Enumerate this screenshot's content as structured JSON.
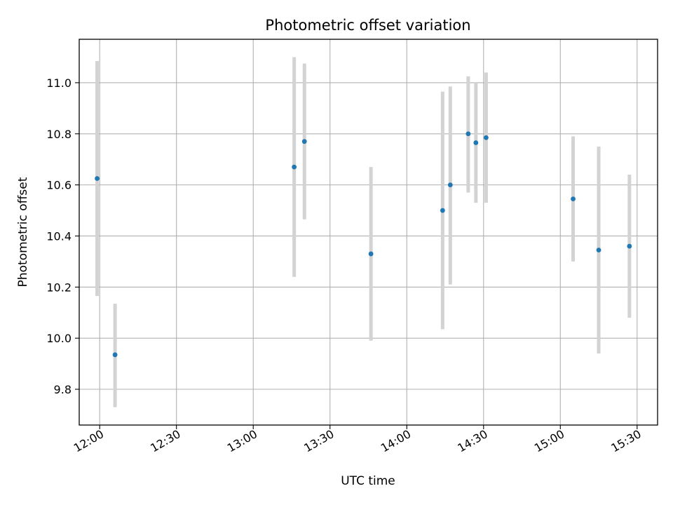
{
  "chart_data": {
    "type": "scatter",
    "title": "Photometric offset variation",
    "xlabel": "UTC time",
    "ylabel": "Photometric offset",
    "x_unit": "UTC clock time (HH:MM)",
    "xlim": [
      "11:52",
      "15:38"
    ],
    "ylim": [
      9.66,
      11.17
    ],
    "grid": true,
    "x_ticks": [
      "12:00",
      "12:30",
      "13:00",
      "13:30",
      "14:00",
      "14:30",
      "15:00",
      "15:30"
    ],
    "y_ticks": [
      9.8,
      10.0,
      10.2,
      10.4,
      10.6,
      10.8,
      11.0
    ],
    "y_tick_labels": [
      "9.8",
      "10.0",
      "10.2",
      "10.4",
      "10.6",
      "10.8",
      "11.0"
    ],
    "marker_color": "#1f77b4",
    "errorbar_color": "#d3d3d3",
    "points": [
      {
        "t": "11:59",
        "y": 10.625,
        "lo": 10.165,
        "hi": 11.085
      },
      {
        "t": "12:06",
        "y": 9.935,
        "lo": 9.73,
        "hi": 10.135
      },
      {
        "t": "13:16",
        "y": 10.67,
        "lo": 10.24,
        "hi": 11.1
      },
      {
        "t": "13:20",
        "y": 10.77,
        "lo": 10.465,
        "hi": 11.075
      },
      {
        "t": "13:46",
        "y": 10.33,
        "lo": 9.99,
        "hi": 10.67
      },
      {
        "t": "14:14",
        "y": 10.5,
        "lo": 10.035,
        "hi": 10.965
      },
      {
        "t": "14:17",
        "y": 10.6,
        "lo": 10.21,
        "hi": 10.985
      },
      {
        "t": "14:24",
        "y": 10.8,
        "lo": 10.57,
        "hi": 11.025
      },
      {
        "t": "14:27",
        "y": 10.765,
        "lo": 10.53,
        "hi": 11.0
      },
      {
        "t": "14:31",
        "y": 10.785,
        "lo": 10.53,
        "hi": 11.04
      },
      {
        "t": "15:05",
        "y": 10.545,
        "lo": 10.3,
        "hi": 10.79
      },
      {
        "t": "15:15",
        "y": 10.345,
        "lo": 9.94,
        "hi": 10.75
      },
      {
        "t": "15:27",
        "y": 10.36,
        "lo": 10.08,
        "hi": 10.64
      }
    ]
  }
}
